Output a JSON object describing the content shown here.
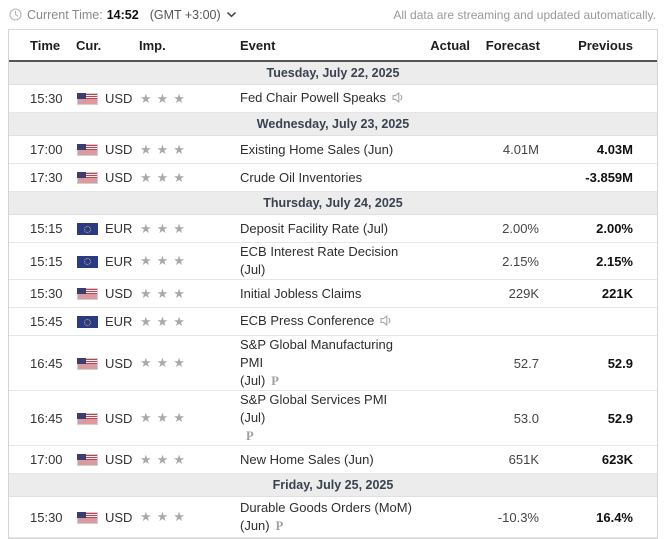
{
  "toolbar": {
    "current_time_label": "Current Time:",
    "current_time": "14:52",
    "timezone": "(GMT +3:00)",
    "streaming_note": "All data are streaming and updated automatically."
  },
  "icons": {
    "clock": "clock-icon",
    "timezone_chevron": "chevron-down-icon",
    "speech": "speaker-icon",
    "preliminary": "preliminary-p-icon",
    "importance_star": "star-icon"
  },
  "colors": {
    "section_bg": "#ececec",
    "star_gray": "#a9a9a9",
    "previous_text": "#111111",
    "header_underline": "#555555",
    "us_flag_red": "#c0424a",
    "eu_flag_blue": "#2a3a85"
  },
  "table": {
    "headers": [
      "Time",
      "Cur.",
      "Imp.",
      "Event",
      "Actual",
      "Forecast",
      "Previous"
    ],
    "rows": [
      {
        "type": "section",
        "label": "Tuesday, July 22, 2025"
      },
      {
        "type": "event",
        "time": "15:30",
        "flag": "us",
        "currency": "USD",
        "importance": 3,
        "event_lines": [
          "Fed Chair Powell Speaks"
        ],
        "speech": true,
        "preliminary": false,
        "tall": false,
        "actual": "",
        "forecast": "",
        "previous": ""
      },
      {
        "type": "section",
        "label": "Wednesday, July 23, 2025"
      },
      {
        "type": "event",
        "time": "17:00",
        "flag": "us",
        "currency": "USD",
        "importance": 3,
        "event_lines": [
          "Existing Home Sales (Jun)"
        ],
        "speech": false,
        "preliminary": false,
        "tall": false,
        "actual": "",
        "forecast": "4.01M",
        "previous": "4.03M"
      },
      {
        "type": "event",
        "time": "17:30",
        "flag": "us",
        "currency": "USD",
        "importance": 3,
        "event_lines": [
          "Crude Oil Inventories"
        ],
        "speech": false,
        "preliminary": false,
        "tall": false,
        "actual": "",
        "forecast": "",
        "previous": "-3.859M"
      },
      {
        "type": "section",
        "label": "Thursday, July 24, 2025"
      },
      {
        "type": "event",
        "time": "15:15",
        "flag": "eu",
        "currency": "EUR",
        "importance": 3,
        "event_lines": [
          "Deposit Facility Rate (Jul)"
        ],
        "speech": false,
        "preliminary": false,
        "tall": false,
        "actual": "",
        "forecast": "2.00%",
        "previous": "2.00%"
      },
      {
        "type": "event",
        "time": "15:15",
        "flag": "eu",
        "currency": "EUR",
        "importance": 3,
        "event_lines": [
          "ECB Interest Rate Decision (Jul)"
        ],
        "speech": false,
        "preliminary": false,
        "tall": false,
        "actual": "",
        "forecast": "2.15%",
        "previous": "2.15%"
      },
      {
        "type": "event",
        "time": "15:30",
        "flag": "us",
        "currency": "USD",
        "importance": 3,
        "event_lines": [
          "Initial Jobless Claims"
        ],
        "speech": false,
        "preliminary": false,
        "tall": false,
        "actual": "",
        "forecast": "229K",
        "previous": "221K"
      },
      {
        "type": "event",
        "time": "15:45",
        "flag": "eu",
        "currency": "EUR",
        "importance": 3,
        "event_lines": [
          "ECB Press Conference"
        ],
        "speech": true,
        "preliminary": false,
        "tall": false,
        "actual": "",
        "forecast": "",
        "previous": ""
      },
      {
        "type": "event",
        "time": "16:45",
        "flag": "us",
        "currency": "USD",
        "importance": 3,
        "event_lines": [
          "S&P Global Manufacturing PMI",
          "(Jul)"
        ],
        "speech": false,
        "preliminary": true,
        "tall": true,
        "actual": "",
        "forecast": "52.7",
        "previous": "52.9"
      },
      {
        "type": "event",
        "time": "16:45",
        "flag": "us",
        "currency": "USD",
        "importance": 3,
        "event_lines": [
          "S&P Global Services PMI (Jul)",
          ""
        ],
        "speech": false,
        "preliminary": true,
        "tall": true,
        "actual": "",
        "forecast": "53.0",
        "previous": "52.9"
      },
      {
        "type": "event",
        "time": "17:00",
        "flag": "us",
        "currency": "USD",
        "importance": 3,
        "event_lines": [
          "New Home Sales (Jun)"
        ],
        "speech": false,
        "preliminary": false,
        "tall": false,
        "actual": "",
        "forecast": "651K",
        "previous": "623K"
      },
      {
        "type": "section",
        "label": "Friday, July 25, 2025"
      },
      {
        "type": "event",
        "time": "15:30",
        "flag": "us",
        "currency": "USD",
        "importance": 3,
        "event_lines": [
          "Durable Goods Orders (MoM)",
          "(Jun)"
        ],
        "speech": false,
        "preliminary": true,
        "tall": true,
        "actual": "",
        "forecast": "-10.3%",
        "previous": "16.4%"
      }
    ]
  }
}
